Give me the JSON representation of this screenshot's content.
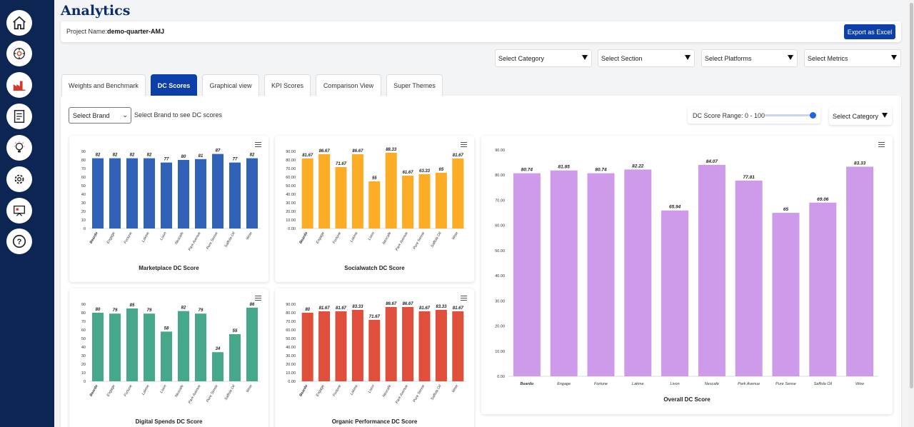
{
  "app": {
    "title": "Analytics"
  },
  "project": {
    "label": "Project Name:",
    "name": "demo-quarter-AMJ",
    "export_label": "Export as Excel"
  },
  "sidebar": {
    "icons": [
      "home-icon",
      "brain-gear-icon",
      "factory-icon",
      "report-icon",
      "bulb-icon",
      "settings-icon",
      "presentation-icon",
      "help-icon"
    ]
  },
  "filters": {
    "category": "Select Category",
    "section": "Select Section",
    "platforms": "Select Platforms",
    "metrics": "Select Metrics"
  },
  "tabs": [
    {
      "label": "Weights and Benchmark",
      "active": false
    },
    {
      "label": "DC Scores",
      "active": true
    },
    {
      "label": "Graphical view",
      "active": false
    },
    {
      "label": "KPI Scores",
      "active": false
    },
    {
      "label": "Comparison View",
      "active": false
    },
    {
      "label": "Super Themes",
      "active": false
    }
  ],
  "controls": {
    "brand_select": "Select Brand",
    "brand_hint": "Select Brand to see DC scores",
    "range_label": "DC Score Range: 0 - 100",
    "range_value": 1.0,
    "category_select": "Select Category"
  },
  "chart_data": [
    {
      "type": "bar",
      "title": "Marketplace DC Score",
      "color": "#2f62b8",
      "categories": [
        "Beardo",
        "Engage",
        "Fortune",
        "Lakme",
        "Livon",
        "Nescafe",
        "Park Avenue",
        "Pure Sense",
        "Saffola Oil",
        "Wow"
      ],
      "values": [
        82,
        82,
        82,
        82,
        77,
        80,
        81,
        87,
        77,
        82
      ],
      "labels": [
        "82",
        "82",
        "82",
        "82",
        "77",
        "80",
        "81",
        "87",
        "77",
        "82"
      ],
      "yticks": [
        "0",
        "10",
        "20",
        "30",
        "40",
        "50",
        "60",
        "70",
        "80",
        "90"
      ],
      "ylim": [
        0,
        90
      ]
    },
    {
      "type": "bar",
      "title": "Socialwatch DC Score",
      "color": "#fdac25",
      "categories": [
        "Beardo",
        "Engage",
        "Fortune",
        "Lakme",
        "Livon",
        "Nescafe",
        "Park Avenue",
        "Pure Sense",
        "Saffola Oil",
        "Wow"
      ],
      "values": [
        81.67,
        86.67,
        71.67,
        86.67,
        55,
        88.33,
        61.67,
        63.33,
        65,
        81.67
      ],
      "labels": [
        "81.67",
        "86.67",
        "71.67",
        "86.67",
        "55",
        "88.33",
        "61.67",
        "63.33",
        "65",
        "81.67"
      ],
      "yticks": [
        "0.00",
        "10.00",
        "20.00",
        "30.00",
        "40.00",
        "50.00",
        "60.00",
        "70.00",
        "80.00",
        "90.00"
      ],
      "ylim": [
        0,
        90
      ]
    },
    {
      "type": "bar",
      "title": "Digital Spends DC Score",
      "color": "#46a88a",
      "categories": [
        "Beardo",
        "Engage",
        "Fortune",
        "Lakme",
        "Livon",
        "Nescafe",
        "Park Avenue",
        "Pure Sense",
        "Saffola Oil",
        "Wow"
      ],
      "values": [
        80,
        79,
        85,
        79,
        58,
        82,
        79,
        34,
        55,
        86
      ],
      "labels": [
        "80",
        "79",
        "85",
        "79",
        "58",
        "82",
        "79",
        "34",
        "55",
        "86"
      ],
      "yticks": [
        "0",
        "10",
        "20",
        "30",
        "40",
        "50",
        "60",
        "70",
        "80",
        "90"
      ],
      "ylim": [
        0,
        90
      ]
    },
    {
      "type": "bar",
      "title": "Organic Performance DC Score",
      "color": "#e04f3b",
      "categories": [
        "Beardo",
        "Engage",
        "Fortune",
        "Lakme",
        "Livon",
        "Nescafe",
        "Park Avenue",
        "Pure Sense",
        "Saffola Oil",
        "Wow"
      ],
      "values": [
        80,
        81.67,
        81.67,
        83.33,
        71.67,
        86.67,
        86.67,
        81.67,
        83.33,
        81.67
      ],
      "labels": [
        "80",
        "81.67",
        "81.67",
        "83.33",
        "71.67",
        "86.67",
        "86.67",
        "81.67",
        "83.33",
        "81.67"
      ],
      "yticks": [
        "0.00",
        "10.00",
        "20.00",
        "30.00",
        "40.00",
        "50.00",
        "60.00",
        "70.00",
        "80.00",
        "90.00"
      ],
      "ylim": [
        0,
        90
      ]
    },
    {
      "type": "bar",
      "title": "Overall DC Score",
      "color": "#cd9be9",
      "categories": [
        "Beardo",
        "Engage",
        "Fortune",
        "Lakme",
        "Livon",
        "Nescafe",
        "Park Avenue",
        "Pure Sense",
        "Saffola Oil",
        "Wow"
      ],
      "values": [
        80.74,
        81.85,
        80.74,
        82.22,
        65.94,
        84.07,
        77.81,
        65,
        69.06,
        83.33
      ],
      "labels": [
        "80.74",
        "81.85",
        "80.74",
        "82.22",
        "65.94",
        "84.07",
        "77.81",
        "65",
        "69.06",
        "83.33"
      ],
      "yticks": [
        "0.00",
        "10.00",
        "20.00",
        "30.00",
        "40.00",
        "50.00",
        "60.00",
        "70.00",
        "80.00",
        "90.00"
      ],
      "ylim": [
        0,
        90
      ]
    }
  ]
}
